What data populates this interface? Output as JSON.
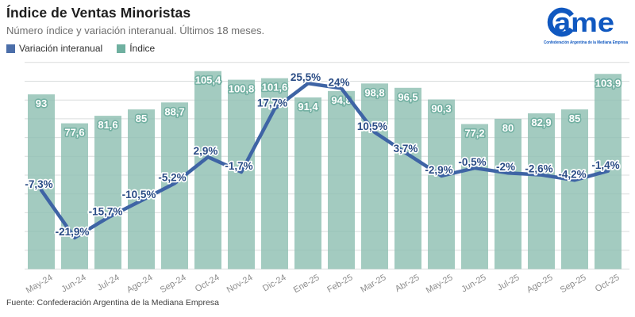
{
  "header": {
    "title": "Índice de Ventas Minoristas",
    "subtitle": "Número índice y variación interanual. Últimos 18 meses."
  },
  "legend": {
    "items": [
      {
        "label": "Variación interanual",
        "color": "#4b6ea9"
      },
      {
        "label": "Índice",
        "color": "#6fb0a0"
      }
    ]
  },
  "logo": {
    "name": "CAME",
    "wordmark": "ame",
    "tagline": "Confederación Argentina de la Mediana Empresa",
    "color": "#1058c0"
  },
  "footer": {
    "source": "Fuente: Confederación Argentina de la Mediana Empresa"
  },
  "chart_data": {
    "type": "bar+line",
    "title": "Índice de Ventas Minoristas",
    "subtitle": "Número índice y variación interanual. Últimos 18 meses.",
    "legend_position": "top-left",
    "grid": true,
    "categories": [
      "May-24",
      "Jun-24",
      "Jul-24",
      "Ago-24",
      "Sep-24",
      "Oct-24",
      "Nov-24",
      "Dic-24",
      "Ene-25",
      "Feb-25",
      "Mar-25",
      "Abr-25",
      "May-25",
      "Jun-25",
      "Jul-25",
      "Ago-25",
      "Sep-25",
      "Oct-25"
    ],
    "bar_axis": {
      "min": 0,
      "max": 110,
      "grid_step": 10,
      "tick_labels_visible": false
    },
    "line_axis": {
      "unit": "%",
      "tick_labels_visible": false
    },
    "series": [
      {
        "name": "Índice",
        "type": "bar",
        "color": "#a3cbc0",
        "label_text_color": "#ffffff",
        "label_outline_color": "#73b0a2",
        "values": [
          93,
          77.6,
          81.6,
          85,
          88.7,
          105.4,
          100.8,
          101.6,
          91.4,
          94.8,
          98.8,
          96.5,
          90.3,
          77.2,
          80,
          82.9,
          85,
          103.9
        ],
        "labels": [
          "93",
          "77,6",
          "81,6",
          "85",
          "88,7",
          "105,4",
          "100,8",
          "101,6",
          "91,4",
          "94,8",
          "98,8",
          "96,5",
          "90,3",
          "77,2",
          "80",
          "82,9",
          "85",
          "103,9"
        ]
      },
      {
        "name": "Variación interanual",
        "type": "line",
        "color": "#3e64a5",
        "label_text_color": "#2a4c85",
        "label_outline_color": "#ffffff",
        "values": [
          -7.3,
          -21.9,
          -15.7,
          -10.5,
          -5.2,
          2.9,
          -1.7,
          17.7,
          25.5,
          24,
          10.5,
          3.7,
          -2.9,
          -0.5,
          -2,
          -2.6,
          -4.2,
          -1.4
        ],
        "labels": [
          "-7,3%",
          "-21,9%",
          "-15,7%",
          "-10,5%",
          "-5,2%",
          "2,9%",
          "-1,7%",
          "17,7%",
          "25,5%",
          "24%",
          "10,5%",
          "3,7%",
          "-2,9%",
          "-0,5%",
          "-2%",
          "-2,6%",
          "-4,2%",
          "-1,4%"
        ]
      }
    ]
  }
}
